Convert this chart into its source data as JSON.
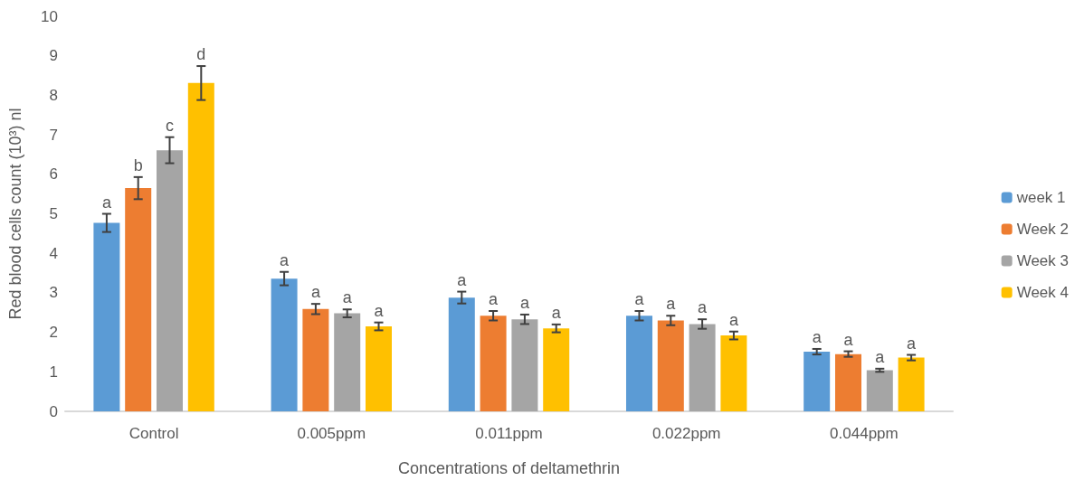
{
  "chart_data": {
    "type": "bar",
    "xlabel": "Concentrations of deltamethrin",
    "ylabel": "Red blood cells count (10³) nl",
    "categories": [
      "Control",
      "0.005ppm",
      "0.011ppm",
      "0.022ppm",
      "0.044ppm"
    ],
    "series": [
      {
        "name": "week 1",
        "color": "#5b9bd5",
        "values": [
          4.77,
          3.36,
          2.88,
          2.42,
          1.51
        ],
        "errors": [
          0.23,
          0.17,
          0.15,
          0.12,
          0.07
        ],
        "value_labels": [
          "a",
          "a",
          "a",
          "a",
          "a"
        ]
      },
      {
        "name": "Week 2",
        "color": "#ed7d31",
        "values": [
          5.65,
          2.59,
          2.42,
          2.3,
          1.45
        ],
        "errors": [
          0.28,
          0.13,
          0.12,
          0.12,
          0.07
        ],
        "value_labels": [
          "b",
          "a",
          "a",
          "a",
          "a"
        ]
      },
      {
        "name": "Week 3",
        "color": "#a5a5a5",
        "values": [
          6.61,
          2.48,
          2.33,
          2.21,
          1.04
        ],
        "errors": [
          0.33,
          0.1,
          0.12,
          0.12,
          0.04
        ],
        "value_labels": [
          "c",
          "a",
          "a",
          "a",
          "a"
        ]
      },
      {
        "name": "Week 4",
        "color": "#ffc000",
        "values": [
          8.31,
          2.15,
          2.1,
          1.92,
          1.36
        ],
        "errors": [
          0.43,
          0.1,
          0.1,
          0.1,
          0.07
        ],
        "value_labels": [
          "d",
          "a",
          "a",
          "a",
          "a"
        ]
      }
    ],
    "ylim": [
      0,
      10
    ],
    "yticks": [
      0,
      1,
      2,
      3,
      4,
      5,
      6,
      7,
      8,
      9,
      10
    ],
    "grid": false,
    "legend": "right"
  }
}
